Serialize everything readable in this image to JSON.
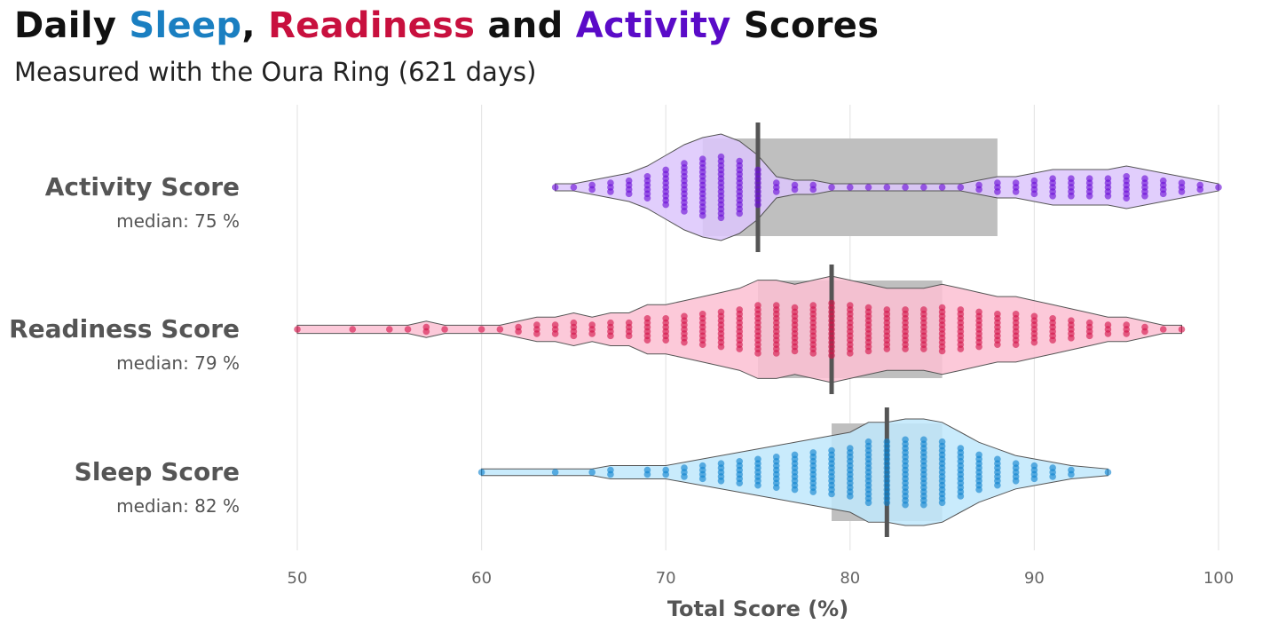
{
  "title": {
    "parts": [
      {
        "text": "Daily ",
        "color": "#111111"
      },
      {
        "text": "Sleep",
        "color": "#1a7fc1"
      },
      {
        "text": ", ",
        "color": "#111111"
      },
      {
        "text": "Readiness",
        "color": "#c8103e"
      },
      {
        "text": " and ",
        "color": "#111111"
      },
      {
        "text": "Activity",
        "color": "#5a0bc8"
      },
      {
        "text": " Scores",
        "color": "#111111"
      }
    ]
  },
  "subtitle": "Measured with the Oura Ring (621 days)",
  "chart_data": {
    "type": "scatter",
    "orientation": "horizontal",
    "xlabel": "Total Score (%)",
    "xlim": [
      50,
      100
    ],
    "x_ticks": [
      50,
      60,
      70,
      80,
      90,
      100
    ],
    "grid": true,
    "box_color": "#bfbfbf",
    "median_color": "#555555",
    "series": [
      {
        "name": "Activity Score",
        "median_label": "median: 75 %",
        "median": 75,
        "q1": 72,
        "q3": 88,
        "point_color": "#6a0dd6",
        "fill_color": "#dcc6fb",
        "values": [
          64,
          65,
          66,
          67,
          68,
          69,
          70,
          71,
          72,
          73,
          74,
          75,
          76,
          77,
          78,
          79,
          80,
          81,
          82,
          83,
          84,
          85,
          86,
          87,
          88,
          89,
          90,
          91,
          92,
          93,
          94,
          95,
          96,
          97,
          98,
          99,
          100
        ],
        "counts": [
          1,
          1,
          2,
          3,
          4,
          6,
          9,
          12,
          14,
          15,
          13,
          9,
          3,
          2,
          2,
          1,
          1,
          1,
          1,
          1,
          1,
          1,
          1,
          2,
          3,
          3,
          4,
          5,
          5,
          5,
          5,
          6,
          5,
          4,
          3,
          2,
          1
        ]
      },
      {
        "name": "Readiness Score",
        "median_label": "median: 79 %",
        "median": 79,
        "q1": 75,
        "q3": 85,
        "point_color": "#d41449",
        "fill_color": "#fcc0d2",
        "values": [
          50,
          53,
          55,
          56,
          57,
          58,
          60,
          61,
          62,
          63,
          64,
          65,
          66,
          67,
          68,
          69,
          70,
          71,
          72,
          73,
          74,
          75,
          76,
          77,
          78,
          79,
          80,
          81,
          82,
          83,
          84,
          85,
          86,
          87,
          88,
          89,
          90,
          91,
          92,
          93,
          94,
          95,
          96,
          97,
          98
        ],
        "counts": [
          1,
          1,
          1,
          1,
          2,
          1,
          1,
          1,
          2,
          3,
          3,
          4,
          3,
          4,
          4,
          6,
          6,
          7,
          8,
          9,
          10,
          12,
          12,
          11,
          12,
          13,
          12,
          11,
          10,
          10,
          10,
          11,
          10,
          9,
          8,
          8,
          7,
          6,
          5,
          4,
          3,
          3,
          2,
          1,
          1
        ]
      },
      {
        "name": "Sleep Score",
        "median_label": "median: 82 %",
        "median": 82,
        "q1": 79,
        "q3": 85,
        "point_color": "#0f82cf",
        "fill_color": "#bfe8fc",
        "values": [
          60,
          64,
          66,
          67,
          69,
          70,
          71,
          72,
          73,
          74,
          75,
          76,
          77,
          78,
          79,
          80,
          81,
          82,
          83,
          84,
          85,
          86,
          87,
          88,
          89,
          90,
          91,
          92,
          94
        ],
        "counts": [
          1,
          1,
          1,
          2,
          2,
          2,
          3,
          4,
          5,
          6,
          7,
          8,
          9,
          10,
          11,
          12,
          15,
          15,
          16,
          16,
          15,
          12,
          9,
          7,
          5,
          4,
          3,
          2,
          1
        ]
      }
    ]
  }
}
